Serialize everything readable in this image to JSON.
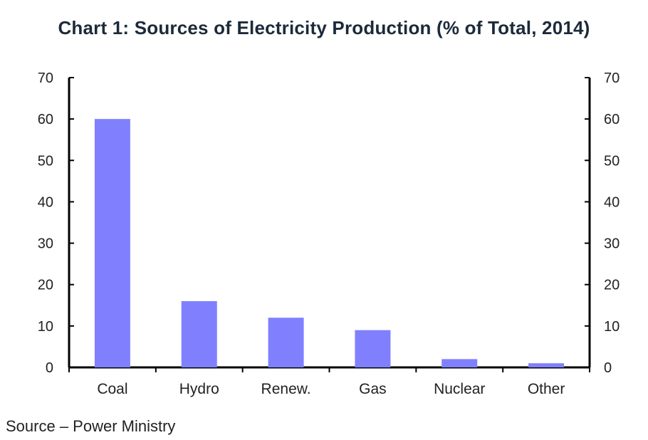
{
  "chart_data": {
    "type": "bar",
    "title": "Chart 1: Sources of Electricity Production (% of Total, 2014)",
    "categories": [
      "Coal",
      "Hydro",
      "Renew.",
      "Gas",
      "Nuclear",
      "Other"
    ],
    "values": [
      60,
      16,
      12,
      9,
      2,
      1
    ],
    "ylim": [
      0,
      70
    ],
    "yticks": [
      0,
      10,
      20,
      30,
      40,
      50,
      60,
      70
    ],
    "secondary_yaxis": true,
    "xlabel": "",
    "ylabel": "",
    "grid": false,
    "bar_color": "#8080ff"
  },
  "source_note": "Source – Power Ministry"
}
